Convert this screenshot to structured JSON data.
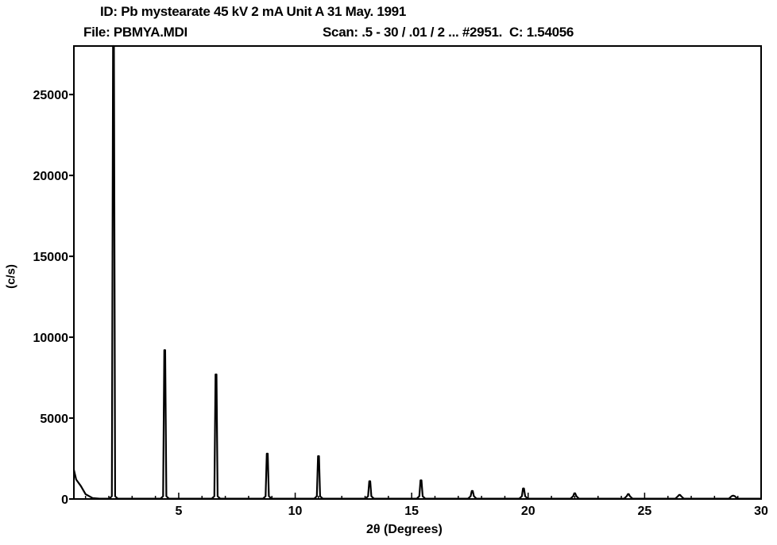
{
  "header": {
    "id_label": "ID:",
    "id_value": "Pb mystearate 45 kV 2 mA Unit A  31 May. 1991",
    "file_label": "File:",
    "file_value": "PBMYA.MDI",
    "scan_label": "Scan:",
    "scan_value": ".5 - 30 / .01 / 2 ... #2951.",
    "c_label": "C:",
    "c_value": "1.54056"
  },
  "chart_data": {
    "type": "line",
    "title": "",
    "xlabel": "2θ (Degrees)",
    "ylabel": "(c/s)",
    "xlim": [
      0.5,
      30
    ],
    "ylim": [
      0,
      28000
    ],
    "x_ticks": [
      5,
      10,
      15,
      20,
      25,
      30
    ],
    "y_ticks": [
      0,
      5000,
      10000,
      15000,
      20000,
      25000
    ],
    "grid": false,
    "series": [
      {
        "color": "#000000",
        "baseline": [
          [
            0.5,
            1800
          ],
          [
            0.6,
            1200
          ],
          [
            0.8,
            800
          ],
          [
            1.0,
            300
          ],
          [
            1.3,
            60
          ],
          [
            1.6,
            20
          ],
          [
            30,
            20
          ]
        ],
        "peaks": [
          {
            "x": 2.2,
            "y": 28000
          },
          {
            "x": 4.4,
            "y": 9200
          },
          {
            "x": 6.6,
            "y": 7700
          },
          {
            "x": 8.8,
            "y": 2800
          },
          {
            "x": 11.0,
            "y": 2650
          },
          {
            "x": 13.2,
            "y": 1100
          },
          {
            "x": 15.4,
            "y": 1150
          },
          {
            "x": 17.6,
            "y": 500
          },
          {
            "x": 19.8,
            "y": 650
          },
          {
            "x": 22.0,
            "y": 350
          },
          {
            "x": 24.3,
            "y": 300
          },
          {
            "x": 26.5,
            "y": 250
          },
          {
            "x": 28.8,
            "y": 200
          }
        ]
      }
    ]
  }
}
